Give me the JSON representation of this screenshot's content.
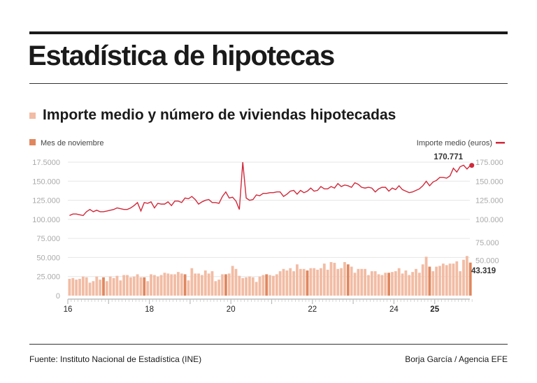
{
  "title": "Estadística de hipotecas",
  "subtitle": "Importe medio y número de viviendas hipotecadas",
  "footer": {
    "source": "Fuente: Instituto Nacional de Estadística (INE)",
    "credit": "Borja García / Agencia EFE"
  },
  "chart_data": {
    "type": "bar+line",
    "legend": {
      "bars": "Mes de noviembre",
      "line": "Importe medio (euros)"
    },
    "colors": {
      "bar": "#f2bca4",
      "bar_november": "#e0875f",
      "line": "#d0293a"
    },
    "x_start": "2016-01",
    "x_end": "2025-11",
    "x_tick_labels": [
      "16",
      "18",
      "20",
      "22",
      "24",
      "25"
    ],
    "left_axis_labels": [
      "0",
      "25.000",
      "50.000",
      "75.000",
      "100.000",
      "125.000",
      "150.000",
      "17.5000"
    ],
    "right_axis_labels": [
      "50.000",
      "75.000",
      "100.000",
      "125.000",
      "150.000",
      "175.000"
    ],
    "ylim": [
      0,
      175000
    ],
    "grid": true,
    "annotations": {
      "last_line_value": "170.771",
      "last_bar_value": "43.319"
    },
    "series": [
      {
        "name": "Mes de noviembre",
        "type": "bar",
        "values": [
          22000,
          23000,
          21000,
          22000,
          25000,
          24000,
          17000,
          19000,
          25000,
          21000,
          24000,
          19000,
          25000,
          23000,
          26000,
          20000,
          27000,
          27000,
          24000,
          25000,
          28000,
          24000,
          24000,
          19000,
          28000,
          27000,
          25000,
          27000,
          30000,
          29000,
          28000,
          28000,
          31000,
          29000,
          28000,
          20000,
          36000,
          29000,
          29000,
          27000,
          33000,
          29000,
          32000,
          19000,
          21000,
          28000,
          28000,
          29000,
          39000,
          35000,
          26000,
          23000,
          24000,
          25000,
          24000,
          18000,
          25000,
          27000,
          28000,
          27000,
          26000,
          28000,
          32000,
          35000,
          33000,
          36000,
          32000,
          41000,
          35000,
          35000,
          33000,
          36000,
          36000,
          34000,
          36000,
          42000,
          34000,
          44000,
          43000,
          35000,
          36000,
          44000,
          41000,
          38000,
          30000,
          35000,
          35000,
          35000,
          27000,
          32000,
          32000,
          28000,
          27000,
          30000,
          30000,
          31000,
          32000,
          36000,
          29000,
          33000,
          27000,
          31000,
          35000,
          30000,
          41000,
          51000,
          38000,
          32000,
          38000,
          39000,
          42000,
          40000,
          42000,
          42000,
          45000,
          32000,
          47000,
          52000,
          43319
        ]
      },
      {
        "name": "Importe medio (euros)",
        "type": "line",
        "values": [
          105000,
          107000,
          107000,
          106000,
          105000,
          110000,
          113000,
          110000,
          112000,
          110000,
          110000,
          111000,
          112000,
          113000,
          115000,
          114000,
          113000,
          113000,
          115000,
          118000,
          122000,
          111000,
          122000,
          121000,
          123000,
          115000,
          121000,
          120000,
          120000,
          123000,
          118000,
          124000,
          124000,
          122000,
          128000,
          127000,
          130000,
          126000,
          120000,
          123000,
          125000,
          126000,
          122000,
          122000,
          121000,
          130000,
          136000,
          128000,
          129000,
          124000,
          113000,
          175000,
          128000,
          125000,
          126000,
          132000,
          131000,
          134000,
          134000,
          135000,
          135000,
          136000,
          136000,
          130000,
          133000,
          137000,
          138000,
          133000,
          138000,
          135000,
          137000,
          141000,
          137000,
          138000,
          143000,
          140000,
          140000,
          143000,
          141000,
          147000,
          143000,
          145000,
          144000,
          142000,
          148000,
          146000,
          142000,
          141000,
          142000,
          141000,
          136000,
          140000,
          142000,
          142000,
          137000,
          141000,
          139000,
          144000,
          139000,
          137000,
          135000,
          136000,
          138000,
          140000,
          144000,
          150000,
          144000,
          149000,
          151000,
          155000,
          155000,
          154000,
          157000,
          167000,
          162000,
          169000,
          171000,
          166000,
          170771
        ]
      }
    ]
  }
}
